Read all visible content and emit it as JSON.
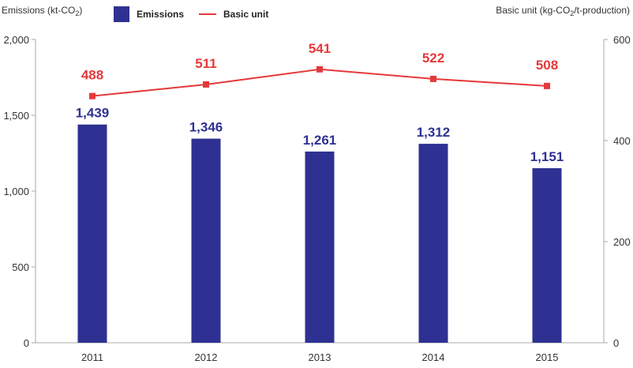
{
  "chart_data": {
    "type": "bar",
    "categories": [
      "2011",
      "2012",
      "2013",
      "2014",
      "2015"
    ],
    "series": [
      {
        "name": "Emissions",
        "type": "bar",
        "axis": "left",
        "values": [
          1439,
          1346,
          1261,
          1312,
          1151
        ],
        "labels": [
          "1,439",
          "1,346",
          "1,261",
          "1,312",
          "1,151"
        ],
        "color": "#2e3192"
      },
      {
        "name": "Basic unit",
        "type": "line",
        "axis": "right",
        "values": [
          488,
          511,
          541,
          522,
          508
        ],
        "labels": [
          "488",
          "511",
          "541",
          "522",
          "508"
        ],
        "color": "#e5393b"
      }
    ],
    "ylabel_left": {
      "main": "Emissions (kt-CO",
      "sub": "2",
      "tail": ")"
    },
    "ylabel_right": {
      "main": "Basic unit (kg-CO",
      "sub": "2",
      "tail": "/t-production)"
    },
    "ylim_left": [
      0,
      2000
    ],
    "ylim_right": [
      0,
      600
    ],
    "yticks_left": [
      {
        "value": 0,
        "label": "0"
      },
      {
        "value": 500,
        "label": "500"
      },
      {
        "value": 1000,
        "label": "1,000"
      },
      {
        "value": 1500,
        "label": "1,500"
      },
      {
        "value": 2000,
        "label": "2,000"
      }
    ],
    "yticks_right": [
      {
        "value": 0,
        "label": "0"
      },
      {
        "value": 200,
        "label": "200"
      },
      {
        "value": 400,
        "label": "400"
      },
      {
        "value": 600,
        "label": "600"
      }
    ],
    "legend_position": "top-left",
    "grid": false
  }
}
